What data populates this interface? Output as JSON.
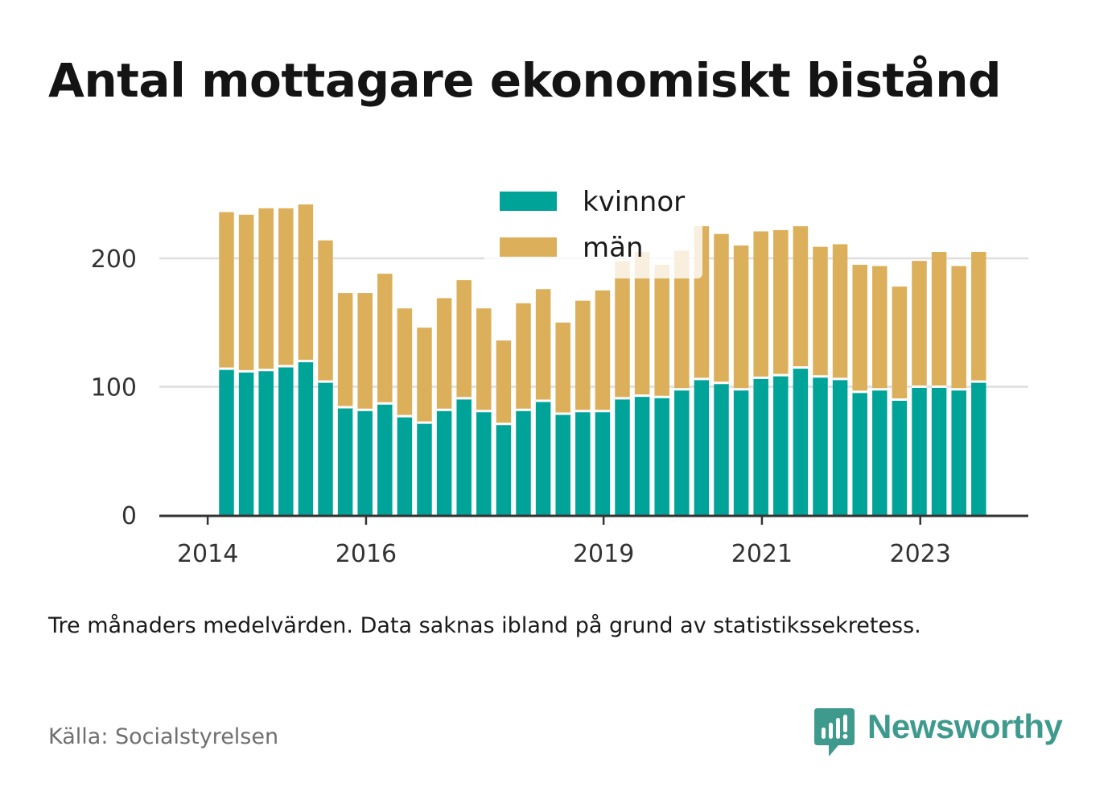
{
  "title": "Antal mottagare ekonomiskt bistånd",
  "note": "Tre månaders medelvärden. Data saknas ibland på grund av statistikssekretess.",
  "source": "Källa: Socialstyrelsen",
  "brand": {
    "name": "Newsworthy",
    "icon": "newsworthy-logo-icon",
    "color": "#3f9a8e"
  },
  "chart_data": {
    "type": "bar",
    "stacked": true,
    "title": "Antal mottagare ekonomiskt bistånd",
    "xlabel": "",
    "ylabel": "",
    "ylim": [
      0,
      240
    ],
    "yticks": [
      0,
      100,
      200
    ],
    "xticks": [
      {
        "label": "2014",
        "index": -0.95
      },
      {
        "label": "2016",
        "index": 7.05
      },
      {
        "label": "2019",
        "index": 19.05
      },
      {
        "label": "2021",
        "index": 27.05
      },
      {
        "label": "2023",
        "index": 35.05
      }
    ],
    "grid": true,
    "legend_position": "top-center",
    "series": [
      {
        "name": "kvinnor",
        "color": "#00a398",
        "values": [
          114,
          112,
          113,
          116,
          120,
          104,
          84,
          82,
          87,
          77,
          72,
          82,
          91,
          81,
          71,
          82,
          89,
          79,
          81,
          81,
          91,
          93,
          92,
          98,
          106,
          103,
          98,
          107,
          109,
          115,
          108,
          106,
          96,
          98,
          90,
          100,
          100,
          98,
          104
        ]
      },
      {
        "name": "män",
        "color": "#dcaf5a",
        "values": [
          122,
          122,
          126,
          123,
          122,
          110,
          89,
          91,
          101,
          84,
          74,
          87,
          92,
          80,
          65,
          83,
          87,
          71,
          86,
          94,
          107,
          112,
          103,
          108,
          119,
          116,
          112,
          114,
          113,
          110,
          101,
          105,
          99,
          96,
          88,
          98,
          105,
          96,
          101
        ]
      }
    ]
  }
}
